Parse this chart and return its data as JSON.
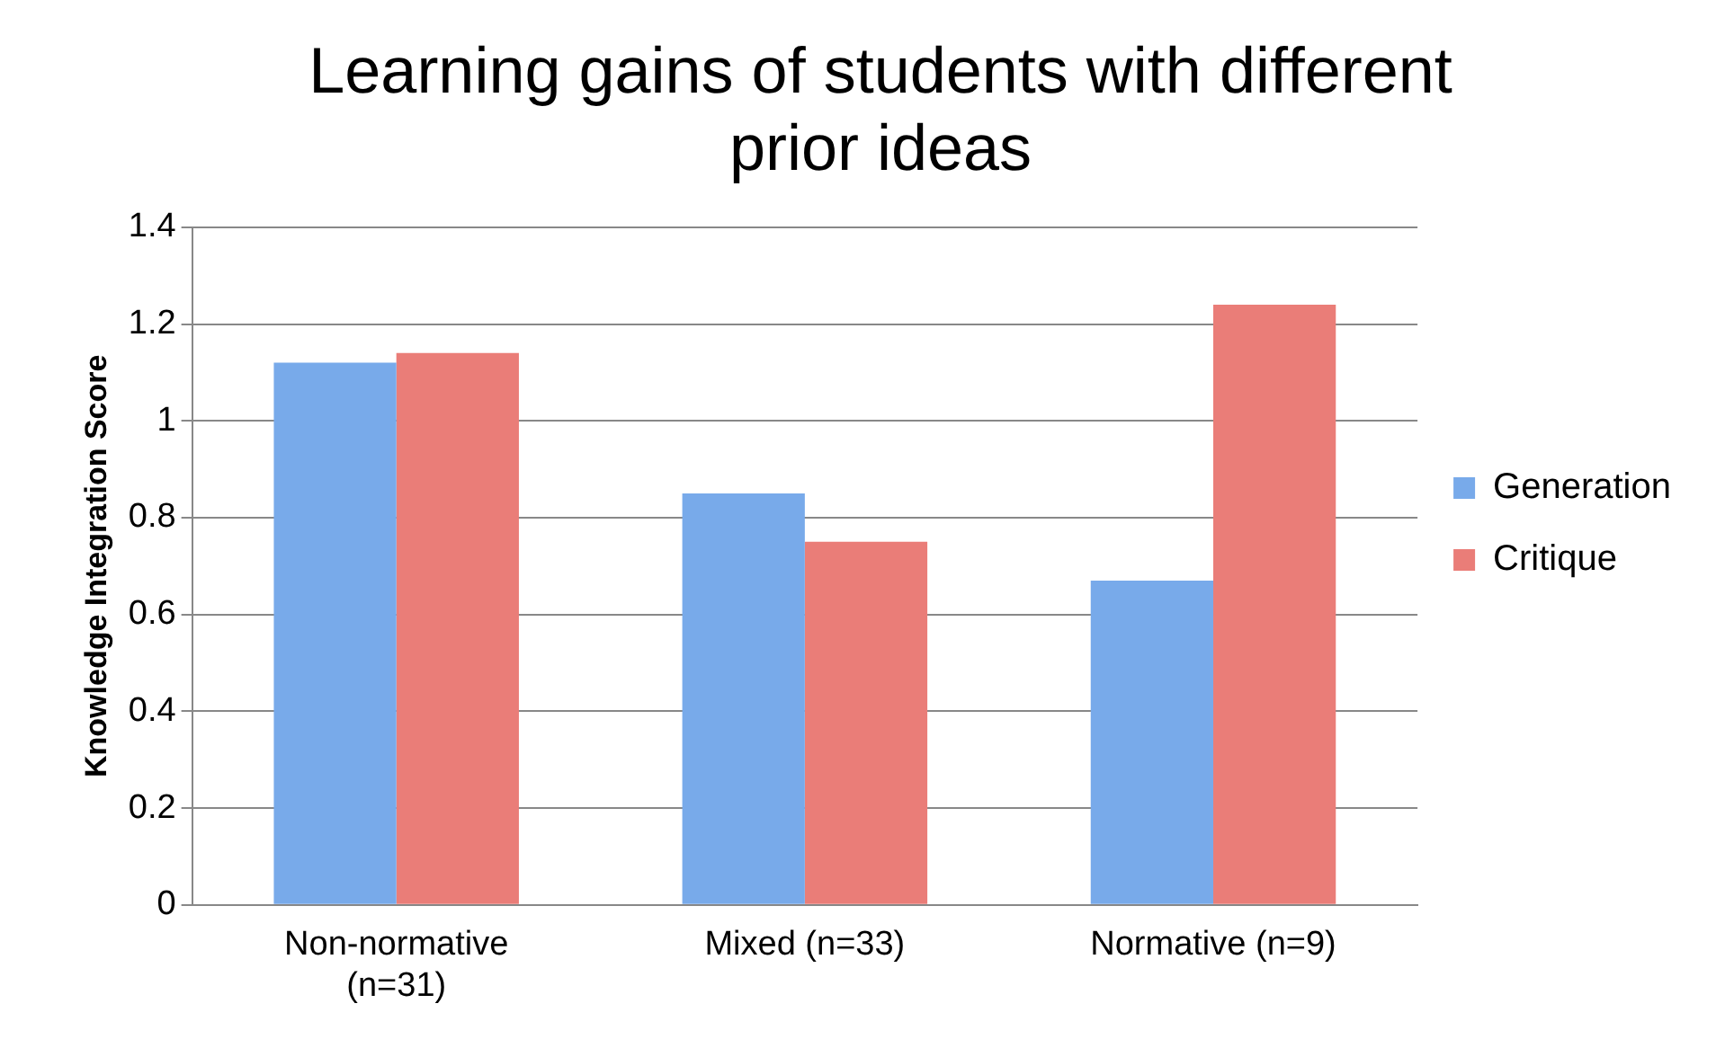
{
  "chart_data": {
    "type": "bar",
    "title": "Learning gains of students with different prior ideas",
    "ylabel": "Knowledge Integration Score",
    "categories": [
      "Non-normative (n=31)",
      "Mixed (n=33)",
      "Normative (n=9)"
    ],
    "series": [
      {
        "name": "Generation",
        "color": "#78aaea",
        "values": [
          1.12,
          0.85,
          0.67
        ]
      },
      {
        "name": "Critique",
        "color": "#ea7d78",
        "values": [
          1.14,
          0.75,
          1.24
        ]
      }
    ],
    "ylim": [
      0,
      1.4
    ],
    "yticks": [
      0,
      0.2,
      0.4,
      0.6,
      0.8,
      1,
      1.2,
      1.4
    ],
    "grid": "y",
    "legend": "right"
  }
}
